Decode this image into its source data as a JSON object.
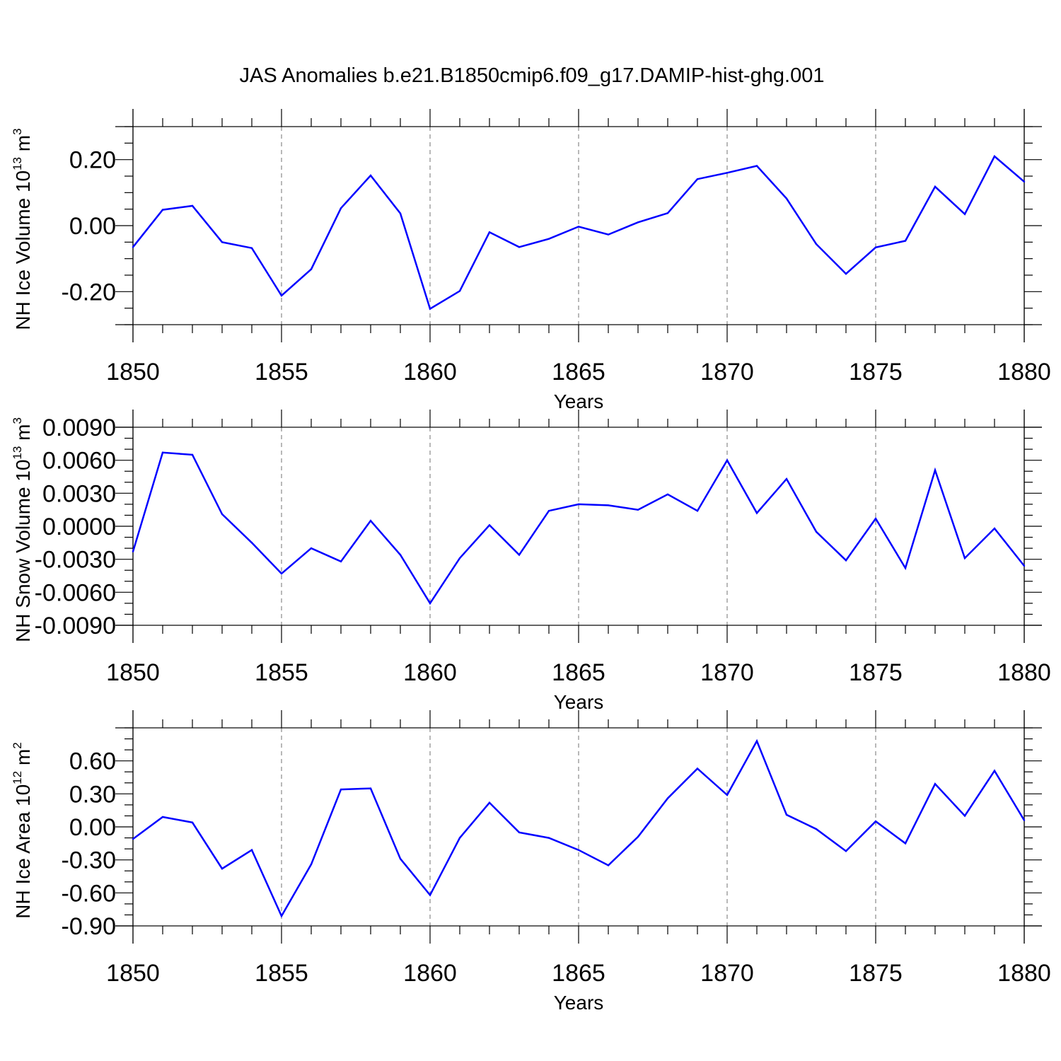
{
  "figure_title": "JAS Anomalies b.e21.B1850cmip6.f09_g17.DAMIP-hist-ghg.001",
  "colors": {
    "line": "#0000ff",
    "axis": "#000000",
    "background": "#ffffff"
  },
  "chart_data": [
    {
      "type": "line",
      "title": "JAS Anomalies b.e21.B1850cmip6.f09_g17.DAMIP-hist-ghg.001",
      "xlabel": "Years",
      "ylabel": "NH Ice Volume 10",
      "ylabel_sup": "13",
      "ylabel_unit": "m",
      "ylabel_unit_sup": "3",
      "xlim": [
        1850,
        1880
      ],
      "ylim": [
        -0.3,
        0.3
      ],
      "x_ticks": [
        1850,
        1855,
        1860,
        1865,
        1870,
        1875,
        1880
      ],
      "x_tick_labels": [
        "1850",
        "1855",
        "1860",
        "1865",
        "1870",
        "1875",
        "1880"
      ],
      "y_ticks": [
        -0.2,
        0.0,
        0.2
      ],
      "y_tick_labels": [
        "-0.20",
        "0.00",
        "0.20"
      ],
      "y_minor_step": 0.05,
      "x": [
        1850,
        1851,
        1852,
        1853,
        1854,
        1855,
        1856,
        1857,
        1858,
        1859,
        1860,
        1861,
        1862,
        1863,
        1864,
        1865,
        1866,
        1867,
        1868,
        1869,
        1870,
        1871,
        1872,
        1873,
        1874,
        1875,
        1876,
        1877,
        1878,
        1879,
        1880
      ],
      "values": [
        -0.065,
        0.048,
        0.06,
        -0.05,
        -0.068,
        -0.212,
        -0.132,
        0.053,
        0.152,
        0.037,
        -0.252,
        -0.198,
        -0.02,
        -0.065,
        -0.04,
        -0.003,
        -0.027,
        0.01,
        0.038,
        0.141,
        0.16,
        0.181,
        0.082,
        -0.056,
        -0.146,
        -0.066,
        -0.046,
        0.118,
        0.035,
        0.21,
        0.133
      ],
      "grid": "vertical dashed at major x ticks"
    },
    {
      "type": "line",
      "title": "",
      "xlabel": "Years",
      "ylabel": "NH Snow Volume 10",
      "ylabel_sup": "13",
      "ylabel_unit": "m",
      "ylabel_unit_sup": "3",
      "xlim": [
        1850,
        1880
      ],
      "ylim": [
        -0.009,
        0.009
      ],
      "x_ticks": [
        1850,
        1855,
        1860,
        1865,
        1870,
        1875,
        1880
      ],
      "x_tick_labels": [
        "1850",
        "1855",
        "1860",
        "1865",
        "1870",
        "1875",
        "1880"
      ],
      "y_ticks": [
        -0.009,
        -0.006,
        -0.003,
        0.0,
        0.003,
        0.006,
        0.009
      ],
      "y_tick_labels": [
        "-0.0090",
        "-0.0060",
        "-0.0030",
        "0.0000",
        "0.0030",
        "0.0060",
        "0.0090"
      ],
      "y_minor_step": 0.001,
      "x": [
        1850,
        1851,
        1852,
        1853,
        1854,
        1855,
        1856,
        1857,
        1858,
        1859,
        1860,
        1861,
        1862,
        1863,
        1864,
        1865,
        1866,
        1867,
        1868,
        1869,
        1870,
        1871,
        1872,
        1873,
        1874,
        1875,
        1876,
        1877,
        1878,
        1879,
        1880
      ],
      "values": [
        -0.0023,
        0.0067,
        0.0065,
        0.0011,
        -0.0015,
        -0.0043,
        -0.002,
        -0.0032,
        0.0005,
        -0.0026,
        -0.007,
        -0.0029,
        0.0001,
        -0.0026,
        0.0014,
        0.002,
        0.0019,
        0.0015,
        0.0029,
        0.0014,
        0.006,
        0.0012,
        0.0043,
        -0.0005,
        -0.0031,
        0.0007,
        -0.0038,
        0.0051,
        -0.0029,
        -0.0002,
        -0.0036
      ],
      "grid": "vertical dashed at major x ticks"
    },
    {
      "type": "line",
      "title": "",
      "xlabel": "Years",
      "ylabel": "NH Ice Area 10",
      "ylabel_sup": "12",
      "ylabel_unit": "m",
      "ylabel_unit_sup": "2",
      "xlim": [
        1850,
        1880
      ],
      "ylim": [
        -0.9,
        0.9
      ],
      "x_ticks": [
        1850,
        1855,
        1860,
        1865,
        1870,
        1875,
        1880
      ],
      "x_tick_labels": [
        "1850",
        "1855",
        "1860",
        "1865",
        "1870",
        "1875",
        "1880"
      ],
      "y_ticks": [
        -0.9,
        -0.6,
        -0.3,
        0.0,
        0.3,
        0.6
      ],
      "y_tick_labels": [
        "-0.90",
        "-0.60",
        "-0.30",
        "0.00",
        "0.30",
        "0.60"
      ],
      "y_minor_step": 0.1,
      "x": [
        1850,
        1851,
        1852,
        1853,
        1854,
        1855,
        1856,
        1857,
        1858,
        1859,
        1860,
        1861,
        1862,
        1863,
        1864,
        1865,
        1866,
        1867,
        1868,
        1869,
        1870,
        1871,
        1872,
        1873,
        1874,
        1875,
        1876,
        1877,
        1878,
        1879,
        1880
      ],
      "values": [
        -0.11,
        0.09,
        0.04,
        -0.38,
        -0.21,
        -0.81,
        -0.34,
        0.34,
        0.35,
        -0.29,
        -0.62,
        -0.1,
        0.22,
        -0.05,
        -0.1,
        -0.21,
        -0.35,
        -0.09,
        0.26,
        0.53,
        0.29,
        0.78,
        0.11,
        -0.02,
        -0.22,
        0.05,
        -0.15,
        0.39,
        0.1,
        0.51,
        0.06
      ],
      "grid": "vertical dashed at major x ticks"
    }
  ]
}
